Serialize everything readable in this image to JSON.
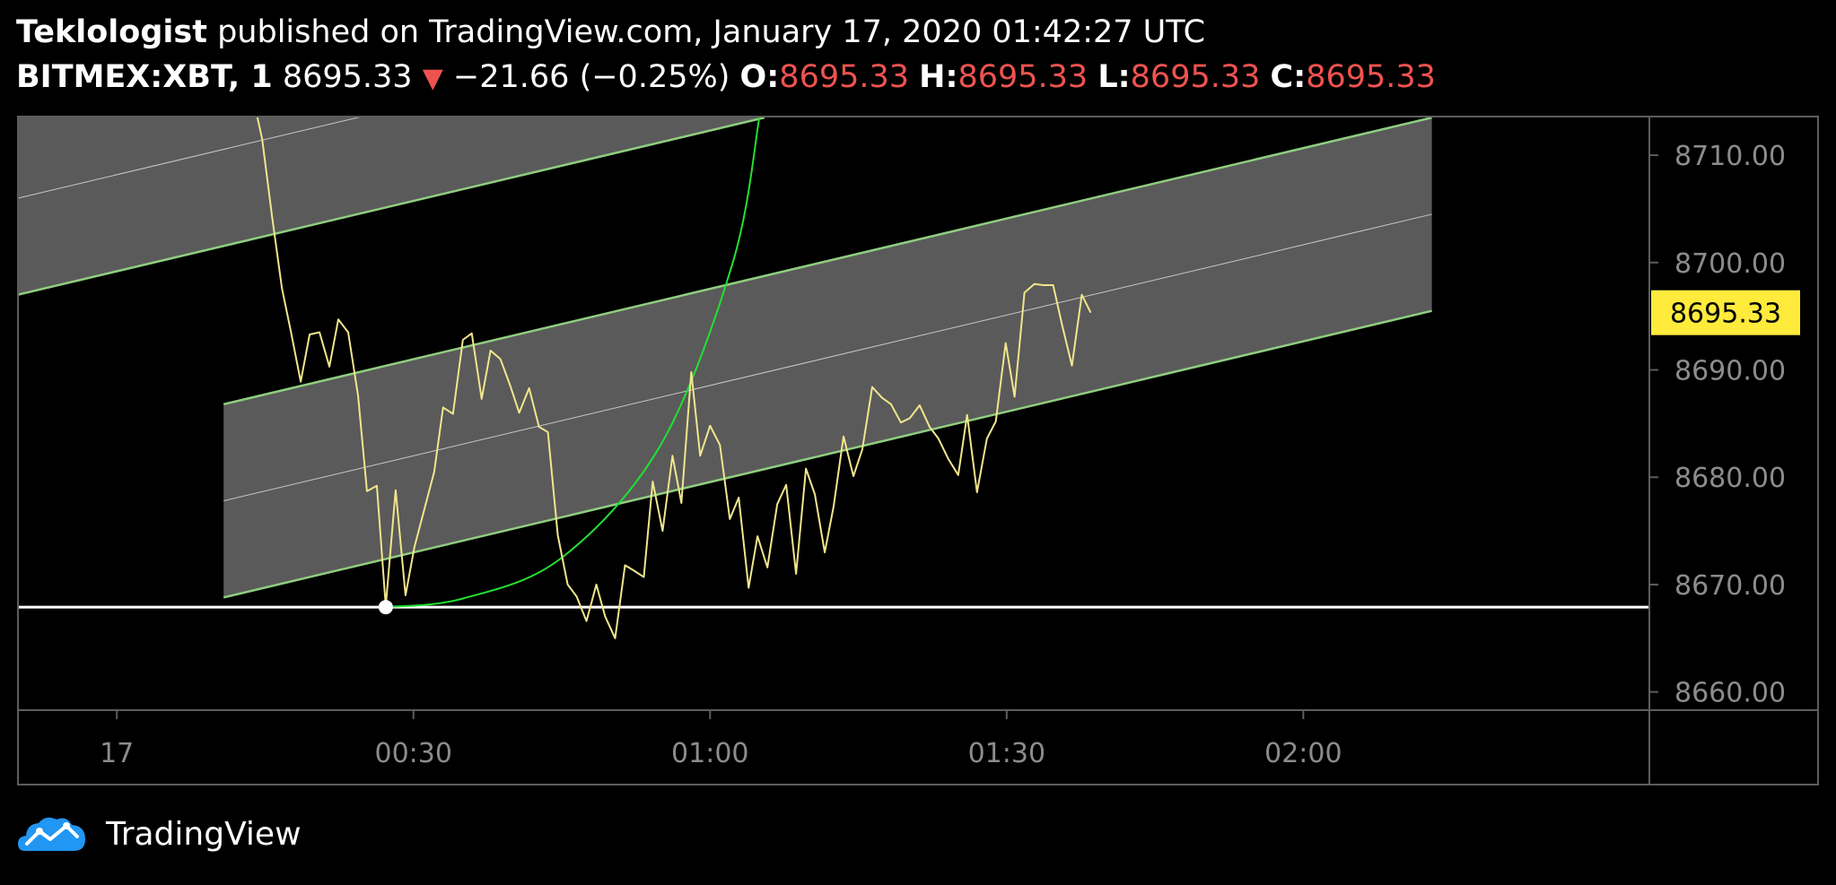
{
  "header": {
    "author": "Teklologist",
    "published_text": "published on TradingView.com, January 17, 2020 01:42:27 UTC",
    "symbol": "BITMEX:XBT, 1",
    "last_price": "8695.33",
    "change_arrow": "▼",
    "change": "−21.66 (−0.25%)",
    "open_label": "O:",
    "open_value": "8695.33",
    "high_label": "H:",
    "high_value": "8695.33",
    "low_label": "L:",
    "low_value": "8695.33",
    "close_label": "C:",
    "close_value": "8695.33"
  },
  "footer": {
    "brand": "TradingView"
  },
  "colors": {
    "price_line": "#f0e68c",
    "channel_fill": "#5a5a5a",
    "channel_edge": "#8fce7f",
    "arc": "#22e032",
    "horizontal": "#ffffff",
    "price_label_bg": "#ffeb3b",
    "down": "#ef5350"
  },
  "icons": {
    "logo": "tradingview-cloud-icon",
    "change": "down-triangle-icon"
  },
  "chart_data": {
    "type": "line",
    "x_axis": {
      "unit": "minutes after 00:00 UTC",
      "range": [
        -10,
        155
      ],
      "tick_labels": [
        "17",
        "00:30",
        "01:00",
        "01:30",
        "02:00"
      ],
      "tick_values": [
        0,
        30,
        60,
        90,
        120
      ]
    },
    "y_axis": {
      "range": [
        8658.3,
        8713.6
      ],
      "tick_labels": [
        "8660.00",
        "8670.00",
        "8680.00",
        "8690.00",
        "8700.00",
        "8710.00"
      ],
      "tick_values": [
        8660,
        8670,
        8680,
        8690,
        8700,
        8710
      ]
    },
    "current_price_label": "8695.33",
    "current_price": 8695.33,
    "series": [
      {
        "values": [
          [
            14.2,
            8713.6
          ],
          [
            14.7,
            8711.5
          ],
          [
            15.7,
            8704.3
          ],
          [
            16.7,
            8697.6
          ],
          [
            17.6,
            8693.6
          ],
          [
            18.6,
            8688.9
          ],
          [
            19.5,
            8693.3
          ],
          [
            20.5,
            8693.5
          ],
          [
            21.5,
            8690.3
          ],
          [
            22.4,
            8694.7
          ],
          [
            23.4,
            8693.5
          ],
          [
            24.4,
            8687.6
          ],
          [
            25.3,
            8678.7
          ],
          [
            26.3,
            8679.2
          ],
          [
            27.2,
            8668.0
          ],
          [
            28.2,
            8678.8
          ],
          [
            29.2,
            8669.0
          ],
          [
            30.1,
            8673.5
          ],
          [
            31.1,
            8677.0
          ],
          [
            32.1,
            8680.5
          ],
          [
            33.0,
            8686.5
          ],
          [
            34.0,
            8685.9
          ],
          [
            35.0,
            8692.8
          ],
          [
            35.9,
            8693.4
          ],
          [
            36.9,
            8687.3
          ],
          [
            37.8,
            8691.8
          ],
          [
            38.8,
            8691.0
          ],
          [
            39.8,
            8688.5
          ],
          [
            40.7,
            8686.0
          ],
          [
            41.7,
            8688.3
          ],
          [
            42.7,
            8684.7
          ],
          [
            43.6,
            8684.2
          ],
          [
            44.6,
            8674.6
          ],
          [
            45.6,
            8670.0
          ],
          [
            46.5,
            8668.9
          ],
          [
            47.5,
            8666.6
          ],
          [
            48.5,
            8670.0
          ],
          [
            49.4,
            8667.0
          ],
          [
            50.4,
            8665.0
          ],
          [
            51.4,
            8671.8
          ],
          [
            52.3,
            8671.3
          ],
          [
            53.3,
            8670.7
          ],
          [
            54.2,
            8679.6
          ],
          [
            55.2,
            8675.0
          ],
          [
            56.2,
            8682.0
          ],
          [
            57.1,
            8677.6
          ],
          [
            58.1,
            8689.8
          ],
          [
            59.0,
            8682.0
          ],
          [
            60.0,
            8684.8
          ],
          [
            61.0,
            8683.0
          ],
          [
            62.0,
            8676.1
          ],
          [
            62.9,
            8678.1
          ],
          [
            63.9,
            8669.7
          ],
          [
            64.8,
            8674.5
          ],
          [
            65.8,
            8671.6
          ],
          [
            66.8,
            8677.5
          ],
          [
            67.7,
            8679.3
          ],
          [
            68.7,
            8671.0
          ],
          [
            69.7,
            8680.8
          ],
          [
            70.6,
            8678.4
          ],
          [
            71.6,
            8673.0
          ],
          [
            72.5,
            8677.3
          ],
          [
            73.5,
            8683.8
          ],
          [
            74.5,
            8680.1
          ],
          [
            75.4,
            8682.6
          ],
          [
            76.4,
            8688.4
          ],
          [
            77.4,
            8687.4
          ],
          [
            78.3,
            8686.8
          ],
          [
            79.3,
            8685.1
          ],
          [
            80.2,
            8685.5
          ],
          [
            81.2,
            8686.7
          ],
          [
            82.2,
            8684.7
          ],
          [
            83.1,
            8683.6
          ],
          [
            84.1,
            8681.7
          ],
          [
            85.1,
            8680.2
          ],
          [
            86.0,
            8685.8
          ],
          [
            87.0,
            8678.6
          ],
          [
            88.0,
            8683.6
          ],
          [
            88.9,
            8685.2
          ],
          [
            89.9,
            8692.5
          ],
          [
            90.8,
            8687.5
          ],
          [
            91.8,
            8697.2
          ],
          [
            92.8,
            8698.0
          ],
          [
            93.7,
            8697.9
          ],
          [
            94.7,
            8697.9
          ],
          [
            95.6,
            8694.2
          ],
          [
            96.6,
            8690.4
          ],
          [
            97.6,
            8697.0
          ],
          [
            98.5,
            8695.33
          ]
        ]
      }
    ],
    "annotations": {
      "horizontal_line": {
        "price": 8667.9
      },
      "point": {
        "time": 27.2,
        "price": 8667.9
      },
      "arc": [
        [
          27.2,
          8667.9
        ],
        [
          35,
          8668.7
        ],
        [
          45,
          8672.5
        ],
        [
          55,
          8683.0
        ],
        [
          62.3,
          8700.0
        ],
        [
          65.0,
          8713.6
        ]
      ],
      "channels": [
        {
          "start": [
            10.8,
            8668.8
          ],
          "end": [
            133.0,
            8695.5
          ],
          "width": 18.0
        },
        {
          "start": [
            -10,
            8697.0
          ],
          "end": [
            65.5,
            8713.5
          ],
          "width": 18.0
        }
      ]
    }
  }
}
